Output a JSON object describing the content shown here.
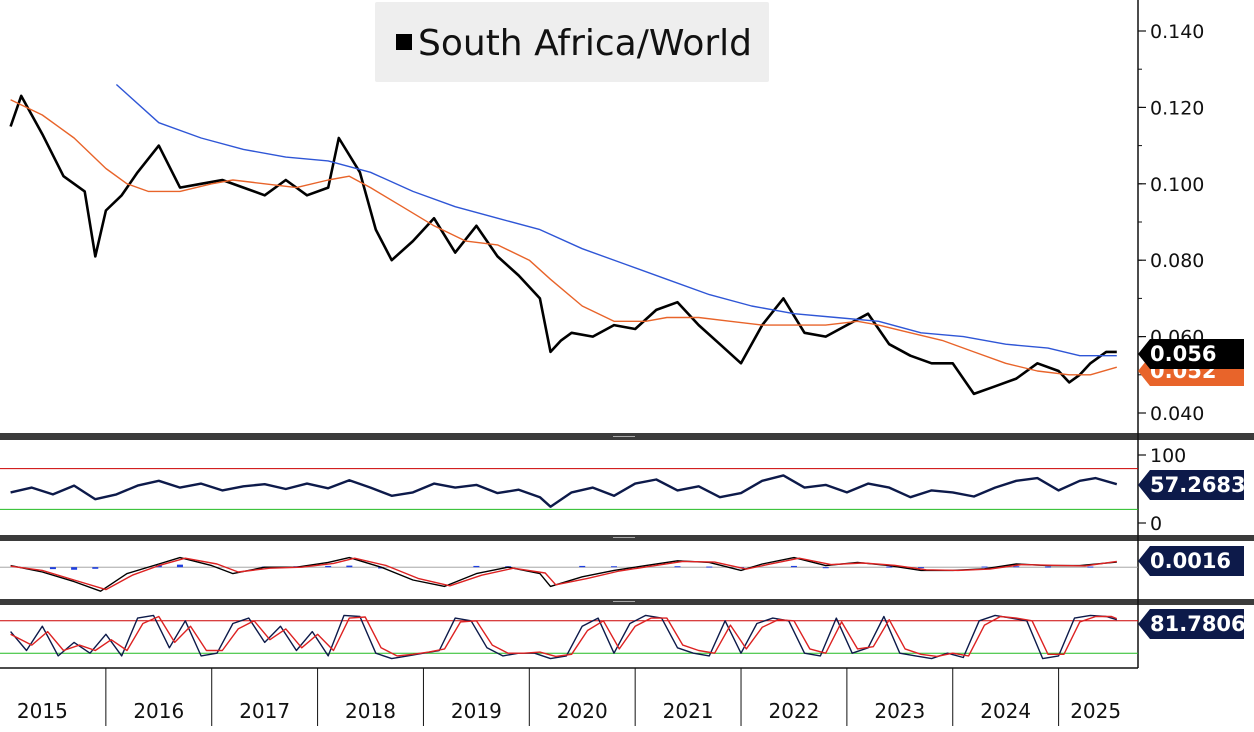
{
  "chart_data": [
    {
      "type": "line",
      "panel": "price",
      "legend": [
        "South Africa/World"
      ],
      "legend_placement": "top-center",
      "x_tick_labels": [
        "2015",
        "2016",
        "2017",
        "2018",
        "2019",
        "2020",
        "2021",
        "2022",
        "2023",
        "2024",
        "2025"
      ],
      "y_tick_labels": [
        "0.140",
        "0.120",
        "0.100",
        "0.080",
        "0.060",
        "0.040"
      ],
      "ylim": [
        0.036,
        0.147
      ],
      "series": [
        {
          "name": "South Africa/World",
          "color": "#000000",
          "last_label": "0.056",
          "x": [
            2014.9,
            2015.0,
            2015.2,
            2015.4,
            2015.6,
            2015.7,
            2015.8,
            2015.95,
            2016.1,
            2016.3,
            2016.5,
            2016.7,
            2016.9,
            2017.1,
            2017.3,
            2017.5,
            2017.7,
            2017.9,
            2018.0,
            2018.2,
            2018.35,
            2018.5,
            2018.7,
            2018.9,
            2019.1,
            2019.3,
            2019.5,
            2019.7,
            2019.9,
            2020.0,
            2020.1,
            2020.2,
            2020.4,
            2020.6,
            2020.8,
            2021.0,
            2021.2,
            2021.4,
            2021.6,
            2021.8,
            2022.0,
            2022.2,
            2022.4,
            2022.6,
            2022.8,
            2023.0,
            2023.2,
            2023.4,
            2023.6,
            2023.8,
            2024.0,
            2024.2,
            2024.4,
            2024.6,
            2024.8,
            2024.9,
            2025.0,
            2025.1,
            2025.25,
            2025.35
          ],
          "values": [
            0.115,
            0.123,
            0.113,
            0.102,
            0.098,
            0.081,
            0.093,
            0.097,
            0.103,
            0.11,
            0.099,
            0.1,
            0.101,
            0.099,
            0.097,
            0.101,
            0.097,
            0.099,
            0.112,
            0.103,
            0.088,
            0.08,
            0.085,
            0.091,
            0.082,
            0.089,
            0.081,
            0.076,
            0.07,
            0.056,
            0.059,
            0.061,
            0.06,
            0.063,
            0.062,
            0.067,
            0.069,
            0.063,
            0.058,
            0.053,
            0.063,
            0.07,
            0.061,
            0.06,
            0.063,
            0.066,
            0.058,
            0.055,
            0.053,
            0.053,
            0.045,
            0.047,
            0.049,
            0.053,
            0.051,
            0.048,
            0.05,
            0.053,
            0.056,
            0.056
          ]
        },
        {
          "name": "",
          "color": "#e8642a",
          "last_label": "0.052",
          "x": [
            2014.9,
            2015.2,
            2015.5,
            2015.8,
            2016.0,
            2016.2,
            2016.5,
            2016.8,
            2017.0,
            2017.3,
            2017.6,
            2017.9,
            2018.1,
            2018.3,
            2018.6,
            2018.9,
            2019.2,
            2019.5,
            2019.8,
            2020.0,
            2020.3,
            2020.6,
            2020.9,
            2021.1,
            2021.4,
            2021.7,
            2022.0,
            2022.3,
            2022.6,
            2022.9,
            2023.1,
            2023.4,
            2023.7,
            2024.0,
            2024.3,
            2024.6,
            2024.9,
            2025.1,
            2025.35
          ],
          "values": [
            0.122,
            0.118,
            0.112,
            0.104,
            0.1,
            0.098,
            0.098,
            0.1,
            0.101,
            0.1,
            0.099,
            0.101,
            0.102,
            0.099,
            0.094,
            0.089,
            0.085,
            0.084,
            0.08,
            0.075,
            0.068,
            0.064,
            0.064,
            0.065,
            0.065,
            0.064,
            0.063,
            0.063,
            0.063,
            0.064,
            0.063,
            0.061,
            0.059,
            0.056,
            0.053,
            0.051,
            0.05,
            0.05,
            0.052
          ]
        },
        {
          "name": "",
          "color": "#2f56d6",
          "last_label": "",
          "x": [
            2015.9,
            2016.3,
            2016.7,
            2017.1,
            2017.5,
            2017.9,
            2018.3,
            2018.7,
            2019.1,
            2019.5,
            2019.9,
            2020.3,
            2020.7,
            2021.1,
            2021.5,
            2021.9,
            2022.3,
            2022.7,
            2023.1,
            2023.5,
            2023.9,
            2024.3,
            2024.7,
            2025.0,
            2025.35
          ],
          "values": [
            0.126,
            0.116,
            0.112,
            0.109,
            0.107,
            0.106,
            0.103,
            0.098,
            0.094,
            0.091,
            0.088,
            0.083,
            0.079,
            0.075,
            0.071,
            0.068,
            0.066,
            0.065,
            0.064,
            0.061,
            0.06,
            0.058,
            0.057,
            0.055,
            0.055
          ]
        }
      ]
    },
    {
      "type": "line",
      "panel": "rsi",
      "y_tick_labels": [
        "100",
        "0"
      ],
      "ylim": [
        0,
        100
      ],
      "reference_lines": [
        {
          "value": 80,
          "color": "#cc0000"
        },
        {
          "value": 20,
          "color": "#22bb22"
        }
      ],
      "series": [
        {
          "name": "",
          "color": "#0d1a4a",
          "last_label": "57.2683",
          "x": [
            2014.9,
            2015.1,
            2015.3,
            2015.5,
            2015.7,
            2015.9,
            2016.1,
            2016.3,
            2016.5,
            2016.7,
            2016.9,
            2017.1,
            2017.3,
            2017.5,
            2017.7,
            2017.9,
            2018.1,
            2018.3,
            2018.5,
            2018.7,
            2018.9,
            2019.1,
            2019.3,
            2019.5,
            2019.7,
            2019.9,
            2020.0,
            2020.2,
            2020.4,
            2020.6,
            2020.8,
            2021.0,
            2021.2,
            2021.4,
            2021.6,
            2021.8,
            2022.0,
            2022.2,
            2022.4,
            2022.6,
            2022.8,
            2023.0,
            2023.2,
            2023.4,
            2023.6,
            2023.8,
            2024.0,
            2024.2,
            2024.4,
            2024.6,
            2024.8,
            2025.0,
            2025.15,
            2025.35
          ],
          "values": [
            45,
            52,
            42,
            55,
            35,
            42,
            55,
            62,
            52,
            58,
            48,
            54,
            57,
            50,
            58,
            51,
            63,
            52,
            40,
            45,
            58,
            52,
            56,
            44,
            49,
            38,
            24,
            45,
            52,
            40,
            58,
            64,
            48,
            54,
            38,
            44,
            62,
            70,
            52,
            56,
            45,
            58,
            52,
            38,
            48,
            45,
            39,
            52,
            62,
            66,
            48,
            62,
            66,
            57
          ]
        }
      ]
    },
    {
      "type": "line",
      "panel": "macd",
      "y_tick_labels": [],
      "series": [
        {
          "name": "",
          "color": "#000000",
          "last_label": "0.0016",
          "x": [
            2014.9,
            2015.2,
            2015.5,
            2015.75,
            2016.0,
            2016.3,
            2016.5,
            2016.8,
            2017.0,
            2017.3,
            2017.6,
            2017.9,
            2018.1,
            2018.4,
            2018.7,
            2019.0,
            2019.3,
            2019.6,
            2019.9,
            2020.0,
            2020.3,
            2020.6,
            2020.9,
            2021.2,
            2021.5,
            2021.8,
            2022.0,
            2022.3,
            2022.6,
            2022.9,
            2023.2,
            2023.5,
            2023.8,
            2024.1,
            2024.4,
            2024.7,
            2025.0,
            2025.35
          ],
          "values": [
            0.0005,
            -0.0015,
            -0.0045,
            -0.0075,
            -0.002,
            0.001,
            0.003,
            0.0005,
            -0.002,
            0.0,
            0.0,
            0.0015,
            0.003,
            0.0,
            -0.004,
            -0.006,
            -0.002,
            0.0,
            -0.002,
            -0.006,
            -0.003,
            -0.001,
            0.0005,
            0.002,
            0.0015,
            -0.001,
            0.001,
            0.003,
            0.0005,
            0.0015,
            0.0005,
            -0.001,
            -0.001,
            -0.0005,
            0.001,
            0.0005,
            0.0005,
            0.0016
          ]
        },
        {
          "name": "",
          "color": "#dd2222",
          "last_label": "",
          "x": [
            2014.9,
            2015.2,
            2015.5,
            2015.8,
            2016.05,
            2016.3,
            2016.55,
            2016.85,
            2017.05,
            2017.35,
            2017.65,
            2017.95,
            2018.15,
            2018.45,
            2018.75,
            2019.05,
            2019.35,
            2019.65,
            2019.95,
            2020.05,
            2020.35,
            2020.65,
            2020.95,
            2021.25,
            2021.55,
            2021.85,
            2022.05,
            2022.35,
            2022.65,
            2022.95,
            2023.25,
            2023.55,
            2023.85,
            2024.15,
            2024.45,
            2024.75,
            2025.05,
            2025.35
          ],
          "values": [
            0.0003,
            -0.001,
            -0.004,
            -0.007,
            -0.0025,
            0.0005,
            0.0028,
            0.001,
            -0.0015,
            -0.0003,
            0.0,
            0.0012,
            0.0028,
            0.0005,
            -0.0035,
            -0.0058,
            -0.0025,
            -0.0003,
            -0.0018,
            -0.0055,
            -0.0035,
            -0.0012,
            0.0003,
            0.0018,
            0.0016,
            -0.0006,
            0.0008,
            0.0028,
            0.0008,
            0.0013,
            0.0006,
            -0.0008,
            -0.001,
            -0.0006,
            0.0008,
            0.0006,
            0.0004,
            0.0018
          ]
        }
      ],
      "histogram": {
        "color": "#1f3fe0",
        "x": [
          2015.3,
          2015.5,
          2015.7,
          2016.3,
          2016.5,
          2017.3,
          2017.6,
          2017.9,
          2018.1,
          2018.4,
          2019.3,
          2019.6,
          2020.3,
          2020.6,
          2021.2,
          2021.5,
          2021.8,
          2022.3,
          2022.6,
          2023.2,
          2023.5,
          2024.1,
          2024.4,
          2024.7,
          2025.1
        ],
        "values": [
          -0.0006,
          -0.0008,
          -0.0005,
          0.0006,
          0.0008,
          0.0002,
          0.0003,
          0.0004,
          0.0005,
          -0.0004,
          0.0004,
          0.0003,
          0.0004,
          0.0003,
          0.0003,
          0.0002,
          -0.0003,
          0.0004,
          -0.0003,
          0.0002,
          -0.0002,
          0.0002,
          0.0003,
          0.0002,
          0.0002
        ]
      }
    },
    {
      "type": "line",
      "panel": "stochastic",
      "y_tick_labels": [],
      "ylim": [
        0,
        100
      ],
      "reference_lines": [
        {
          "value": 80,
          "color": "#cc0000"
        },
        {
          "value": 20,
          "color": "#22bb22"
        }
      ],
      "series": [
        {
          "name": "",
          "color": "#0d1a4a",
          "last_label": "81.7806",
          "x": [
            2014.9,
            2015.05,
            2015.2,
            2015.35,
            2015.5,
            2015.65,
            2015.8,
            2015.95,
            2016.1,
            2016.25,
            2016.4,
            2016.55,
            2016.7,
            2016.85,
            2017.0,
            2017.15,
            2017.3,
            2017.45,
            2017.6,
            2017.75,
            2017.9,
            2018.05,
            2018.2,
            2018.35,
            2018.5,
            2018.65,
            2018.8,
            2018.95,
            2019.1,
            2019.25,
            2019.4,
            2019.55,
            2019.7,
            2019.85,
            2020.0,
            2020.15,
            2020.3,
            2020.45,
            2020.6,
            2020.75,
            2020.9,
            2021.05,
            2021.2,
            2021.35,
            2021.5,
            2021.65,
            2021.8,
            2021.95,
            2022.1,
            2022.25,
            2022.4,
            2022.55,
            2022.7,
            2022.85,
            2023.0,
            2023.15,
            2023.3,
            2023.45,
            2023.6,
            2023.75,
            2023.9,
            2024.05,
            2024.2,
            2024.35,
            2024.5,
            2024.65,
            2024.8,
            2024.95,
            2025.1,
            2025.25,
            2025.35
          ],
          "values": [
            60,
            25,
            70,
            15,
            40,
            20,
            55,
            15,
            85,
            90,
            30,
            80,
            15,
            20,
            75,
            85,
            40,
            70,
            25,
            60,
            15,
            90,
            88,
            20,
            10,
            15,
            20,
            25,
            85,
            80,
            30,
            15,
            20,
            20,
            10,
            15,
            70,
            85,
            20,
            75,
            90,
            85,
            30,
            20,
            15,
            80,
            20,
            75,
            85,
            80,
            20,
            15,
            85,
            20,
            30,
            88,
            20,
            15,
            10,
            20,
            12,
            80,
            90,
            85,
            80,
            10,
            15,
            85,
            90,
            88,
            82
          ]
        },
        {
          "name": "",
          "color": "#dd2222",
          "last_label": "",
          "x": [
            2014.9,
            2015.1,
            2015.25,
            2015.4,
            2015.55,
            2015.7,
            2015.85,
            2016.0,
            2016.15,
            2016.3,
            2016.45,
            2016.6,
            2016.75,
            2016.9,
            2017.05,
            2017.2,
            2017.35,
            2017.5,
            2017.65,
            2017.8,
            2017.95,
            2018.1,
            2018.25,
            2018.4,
            2018.55,
            2018.7,
            2018.85,
            2019.0,
            2019.15,
            2019.3,
            2019.45,
            2019.6,
            2019.75,
            2019.9,
            2020.05,
            2020.2,
            2020.35,
            2020.5,
            2020.65,
            2020.8,
            2020.95,
            2021.1,
            2021.25,
            2021.4,
            2021.55,
            2021.7,
            2021.85,
            2022.0,
            2022.15,
            2022.3,
            2022.45,
            2022.6,
            2022.75,
            2022.9,
            2023.05,
            2023.2,
            2023.35,
            2023.5,
            2023.65,
            2023.8,
            2023.95,
            2024.1,
            2024.25,
            2024.4,
            2024.55,
            2024.7,
            2024.85,
            2025.0,
            2025.15,
            2025.3,
            2025.35
          ],
          "values": [
            55,
            35,
            60,
            25,
            35,
            25,
            45,
            25,
            75,
            88,
            40,
            70,
            25,
            25,
            65,
            80,
            45,
            65,
            30,
            55,
            25,
            85,
            87,
            30,
            15,
            18,
            22,
            28,
            78,
            80,
            35,
            20,
            20,
            22,
            14,
            18,
            62,
            80,
            28,
            70,
            85,
            85,
            35,
            25,
            20,
            72,
            28,
            68,
            82,
            80,
            28,
            20,
            78,
            28,
            32,
            82,
            28,
            18,
            14,
            20,
            15,
            72,
            88,
            85,
            80,
            18,
            18,
            78,
            88,
            88,
            84
          ]
        },
        {
          "name": "",
          "color": "#22bb22",
          "last_label": "",
          "x": [],
          "values": []
        }
      ]
    }
  ]
}
